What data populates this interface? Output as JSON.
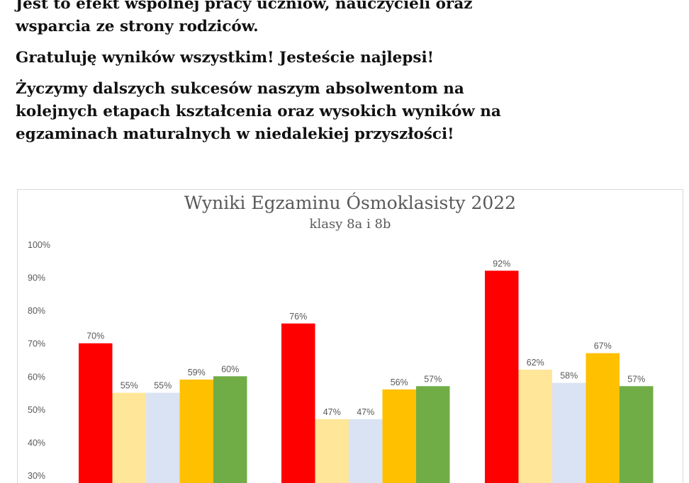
{
  "text": {
    "para1_line1": "Jest to efekt wspólnej pracy uczniów, nauczycieli oraz",
    "para1_line2": "wsparcia ze strony rodziców.",
    "para2": "Gratuluję wyników wszystkim! Jesteście najlepsi!",
    "para3_line1": "Życzymy dalszych sukcesów naszym absolwentom na",
    "para3_line2": "kolejnych etapach kształcenia oraz wysokich wyników na",
    "para3_line3": "egzaminach maturalnych w niedalekiej przyszłości!"
  },
  "chart_data": {
    "type": "bar",
    "title": "Wyniki Egzaminu Ósmoklasisty 2022",
    "subtitle": "klasy 8a i 8b",
    "xlabel": "",
    "ylabel": "",
    "ylim": [
      30,
      100
    ],
    "yticks": [
      "100%",
      "90%",
      "80%",
      "70%",
      "60%",
      "50%",
      "40%",
      "30%"
    ],
    "grid": false,
    "categories": [
      "",
      "",
      ""
    ],
    "series": [
      {
        "color": "#ff0000",
        "values": [
          70,
          76,
          92
        ],
        "labels": [
          "70%",
          "76%",
          "92%"
        ]
      },
      {
        "color": "#ffe699",
        "values": [
          55,
          47,
          62
        ],
        "labels": [
          "55%",
          "47%",
          "62%"
        ]
      },
      {
        "color": "#dae3f3",
        "values": [
          55,
          47,
          58
        ],
        "labels": [
          "55%",
          "47%",
          "58%"
        ]
      },
      {
        "color": "#ffc000",
        "values": [
          59,
          56,
          67
        ],
        "labels": [
          "59%",
          "56%",
          "67%"
        ]
      },
      {
        "color": "#70ad47",
        "values": [
          60,
          57,
          57
        ],
        "labels": [
          "60%",
          "57%",
          "57%"
        ]
      }
    ]
  }
}
